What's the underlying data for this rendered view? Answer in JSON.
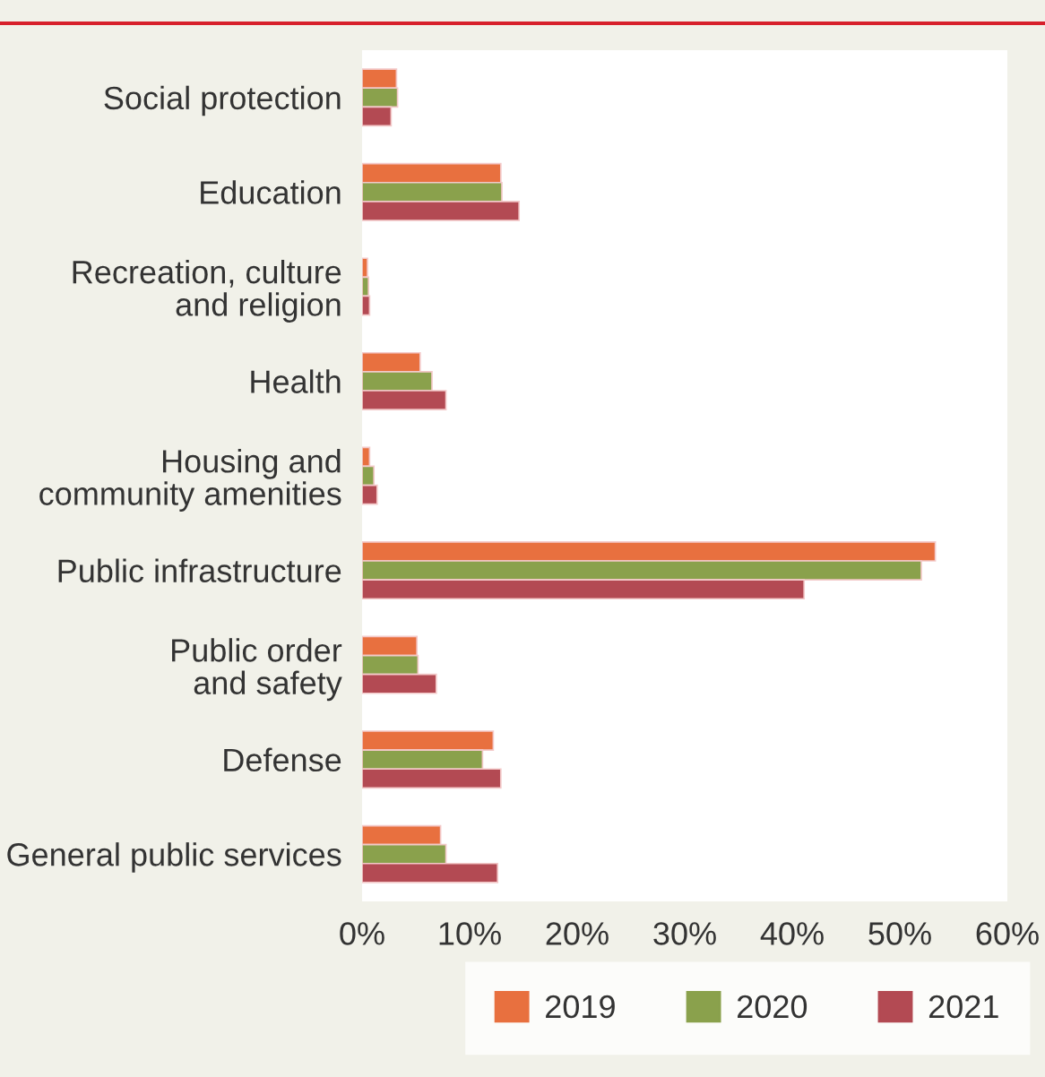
{
  "chart_data": {
    "type": "bar",
    "orientation": "horizontal",
    "categories": [
      "Social protection",
      "Education",
      "Recreation, culture\nand religion",
      "Health",
      "Housing and\ncommunity amenities",
      "Public infrastructure",
      "Public order\nand safety",
      "Defense",
      "General public services"
    ],
    "series": [
      {
        "name": "2019",
        "color": "#e8703f",
        "values": [
          3.2,
          12.9,
          0.5,
          5.4,
          0.7,
          53.3,
          5.1,
          12.2,
          7.3
        ]
      },
      {
        "name": "2020",
        "color": "#8aa14c",
        "values": [
          3.3,
          13.0,
          0.6,
          6.5,
          1.1,
          52.0,
          5.2,
          11.2,
          7.8
        ]
      },
      {
        "name": "2021",
        "color": "#b34a53",
        "values": [
          2.7,
          14.6,
          0.7,
          7.8,
          1.4,
          41.1,
          6.9,
          12.9,
          12.6
        ]
      }
    ],
    "xlim": [
      0,
      60
    ],
    "xticks": [
      {
        "value": 0,
        "label": "0%"
      },
      {
        "value": 10,
        "label": "10%"
      },
      {
        "value": 20,
        "label": "20%"
      },
      {
        "value": 30,
        "label": "30%"
      },
      {
        "value": 40,
        "label": "40%"
      },
      {
        "value": 50,
        "label": "50%"
      },
      {
        "value": 60,
        "label": "60%"
      }
    ],
    "grid": false,
    "legend": "bottom"
  }
}
